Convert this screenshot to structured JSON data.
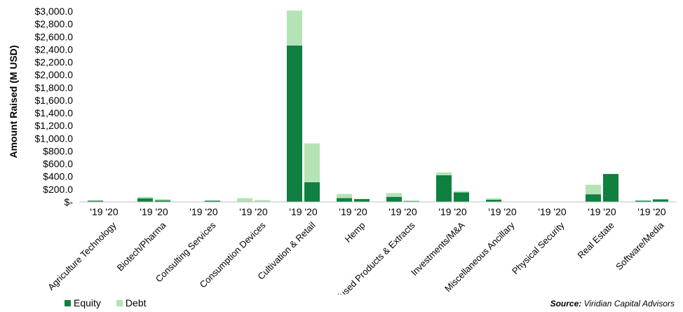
{
  "chart_data": {
    "type": "bar",
    "stacked": true,
    "ylabel": "Amount Raised (M USD)",
    "ylim": [
      0,
      3000
    ],
    "y_ticks": [
      0,
      200,
      400,
      600,
      800,
      1000,
      1200,
      1400,
      1600,
      1800,
      2000,
      2200,
      2400,
      2600,
      2800,
      3000
    ],
    "y_tick_labels": [
      "$-",
      "$200.0",
      "$400.0",
      "$600.0",
      "$800.0",
      "$1,000.0",
      "$1,200.0",
      "$1,400.0",
      "$1,600.0",
      "$1,800.0",
      "$2,000.0",
      "$2,200.0",
      "$2,400.0",
      "$2,600.0",
      "$2,800.0",
      "$3,000.0"
    ],
    "grid": false,
    "legend_position": "bottom-left",
    "year_labels": [
      "'19",
      "'20"
    ],
    "categories": [
      "Agriculture Technology",
      "Biotech/Pharma",
      "Consulting Services",
      "Consumption Devices",
      "Cultivation & Retail",
      "Hemp",
      "Infused Products & Extracts",
      "Investments/M&A",
      "Miscellaneous Ancillary",
      "Physical Security",
      "Real Estate",
      "Software/Media"
    ],
    "series": [
      {
        "name": "Equity",
        "color": "#0f8040",
        "values_2019": [
          20,
          55,
          0,
          5,
          2460,
          60,
          80,
          420,
          35,
          0,
          120,
          20
        ],
        "values_2020": [
          5,
          25,
          20,
          5,
          310,
          45,
          10,
          150,
          0,
          0,
          440,
          40
        ]
      },
      {
        "name": "Debt",
        "color": "#b4e3b6",
        "values_2019": [
          0,
          25,
          0,
          55,
          550,
          65,
          60,
          45,
          20,
          0,
          150,
          0
        ],
        "values_2020": [
          0,
          20,
          0,
          25,
          610,
          5,
          15,
          20,
          0,
          0,
          0,
          5
        ]
      }
    ]
  },
  "legend": {
    "equity": "Equity",
    "debt": "Debt"
  },
  "source": {
    "label": "Source:",
    "text": " Viridian Capital Advisors"
  }
}
